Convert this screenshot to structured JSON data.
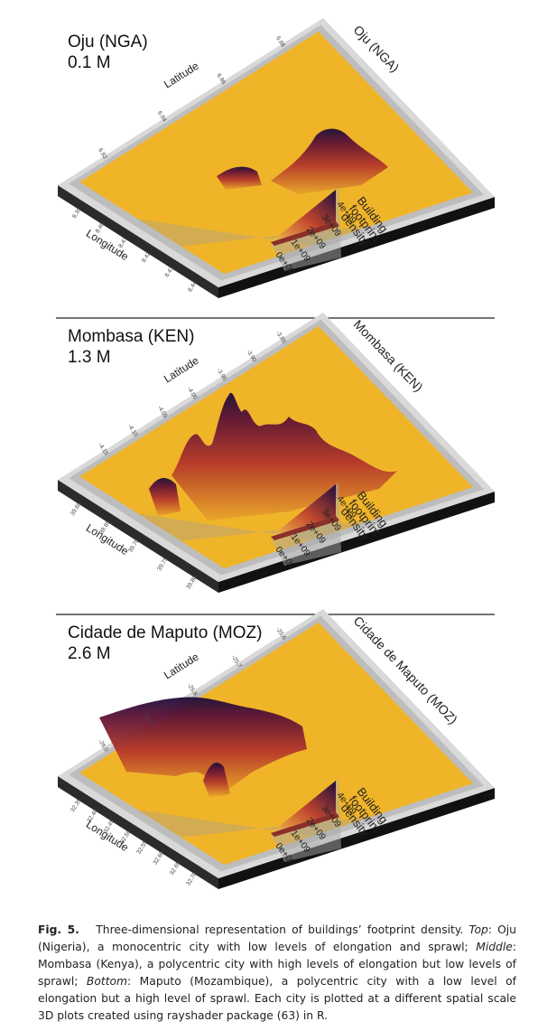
{
  "panels": [
    {
      "title": "Oju (NGA)",
      "population": "0.1 M",
      "plot_title": "Oju (NGA)",
      "x_label": "Longitude",
      "y_label": "Latitude",
      "x_ticks": [
        "8.39",
        "8.40",
        "8.41",
        "8.42",
        "8.43",
        "8.44"
      ],
      "y_ticks": [
        "6.82",
        "6.84",
        "6.86",
        "6.88"
      ]
    },
    {
      "title": "Mombasa (KEN)",
      "population": "1.3 M",
      "plot_title": "Mombasa (KEN)",
      "x_label": "Longitude",
      "y_label": "Latitude",
      "x_ticks": [
        "39.60",
        "39.65",
        "39.70",
        "39.75",
        "39.80"
      ],
      "y_ticks": [
        "-4.15",
        "-4.10",
        "-4.05",
        "-4.00",
        "-3.95",
        "-3.90",
        "-3.85"
      ]
    },
    {
      "title": "Cidade de Maputo (MOZ)",
      "population": "2.6 M",
      "plot_title": "Cidade de Maputo (MOZ)",
      "x_label": "Longitude",
      "y_label": "Latitude",
      "x_ticks": [
        "32.35",
        "32.40",
        "32.45",
        "32.50",
        "32.55",
        "32.60",
        "32.65",
        "32.70"
      ],
      "y_ticks": [
        "-26.0",
        "-25.9",
        "-25.8",
        "-25.7",
        "-25.6"
      ]
    }
  ],
  "legend": {
    "title": [
      "Building",
      "footprint",
      "density"
    ],
    "ticks": [
      "0e+00",
      "1e+09",
      "2e+09",
      "3e+09",
      "4e+09"
    ]
  },
  "caption": {
    "label": "Fig. 5.",
    "intro": "Three-dimensional representation of buildings’ footprint density.",
    "top_label": "Top",
    "top_text": ": Oju (Nigeria), a monocentric city with low levels of elongation and sprawl;",
    "middle_label": "Middle",
    "middle_text": ": Mombasa (Kenya), a polycentric city with high levels of elongation but low levels of sprawl;",
    "bottom_label": "Bottom",
    "bottom_text": ": Maputo (Mozambique), a polycentric city with a low level of elongation but a high level of sprawl. Each city is plotted at a different spatial scale 3D plots created using rayshader package (63) in R."
  }
}
